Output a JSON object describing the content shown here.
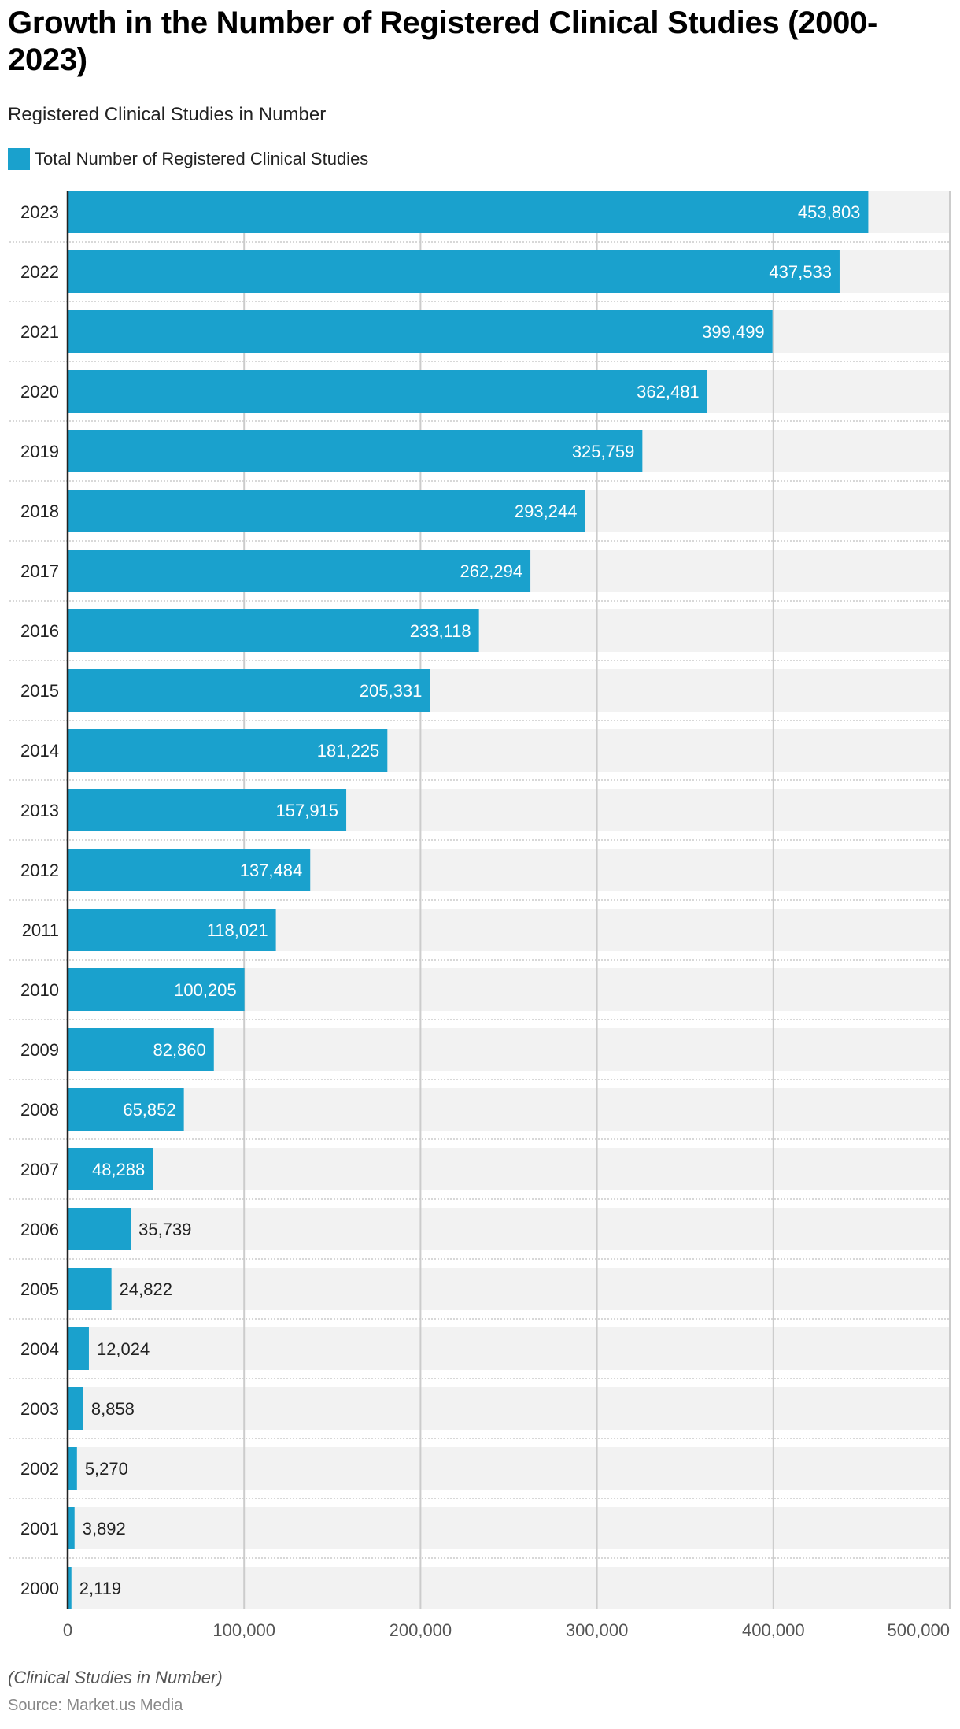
{
  "header": {
    "title": "Growth in the Number of Registered Clinical Studies (2000-2023)",
    "subtitle": "Registered Clinical Studies in Number"
  },
  "legend": {
    "label": "Total Number of Registered Clinical Studies",
    "color": "#1aa1cd"
  },
  "footer": {
    "note": "(Clinical Studies in Number)",
    "source": "Source: Market.us Media"
  },
  "colors": {
    "bar": "#1aa1cd",
    "track": "#f2f2f2",
    "grid": "#cccccc",
    "separator": "#cccccc",
    "axis": "#222222",
    "label_inside": "#ffffff",
    "label_outside": "#222222",
    "tick": "#555555"
  },
  "chart_data": {
    "type": "bar",
    "orientation": "horizontal",
    "title": "Growth in the Number of Registered Clinical Studies (2000-2023)",
    "subtitle": "Registered Clinical Studies in Number",
    "xlabel": "",
    "ylabel": "",
    "xlim": [
      0,
      500000
    ],
    "x_ticks": [
      0,
      100000,
      200000,
      300000,
      400000,
      500000
    ],
    "x_tick_labels": [
      "0",
      "100,000",
      "200,000",
      "300,000",
      "400,000",
      "500,000"
    ],
    "grid": true,
    "legend_position": "top-left",
    "categories": [
      "2023",
      "2022",
      "2021",
      "2020",
      "2019",
      "2018",
      "2017",
      "2016",
      "2015",
      "2014",
      "2013",
      "2012",
      "2011",
      "2010",
      "2009",
      "2008",
      "2007",
      "2006",
      "2005",
      "2004",
      "2003",
      "2002",
      "2001",
      "2000"
    ],
    "series": [
      {
        "name": "Total Number of Registered Clinical Studies",
        "values": [
          453803,
          437533,
          399499,
          362481,
          325759,
          293244,
          262294,
          233118,
          205331,
          181225,
          157915,
          137484,
          118021,
          100205,
          82860,
          65852,
          48288,
          35739,
          24822,
          12024,
          8858,
          5270,
          3892,
          2119
        ],
        "labels": [
          "453,803",
          "437,533",
          "399,499",
          "362,481",
          "325,759",
          "293,244",
          "262,294",
          "233,118",
          "205,331",
          "181,225",
          "157,915",
          "137,484",
          "118,021",
          "100,205",
          "82,860",
          "65,852",
          "48,288",
          "35,739",
          "24,822",
          "12,024",
          "8,858",
          "5,270",
          "3,892",
          "2,119"
        ]
      }
    ]
  }
}
